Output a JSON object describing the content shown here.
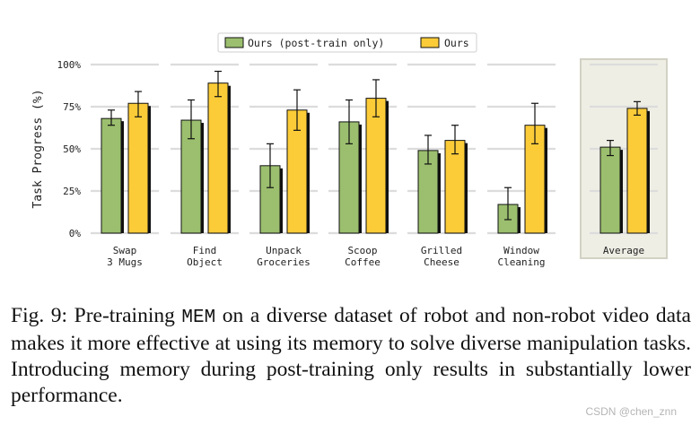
{
  "chart_data": {
    "type": "bar",
    "ylabel": "Task Progress (%)",
    "ylim": [
      0,
      100
    ],
    "yticks": [
      0,
      25,
      50,
      75,
      100
    ],
    "ytick_labels": [
      "0%",
      "25%",
      "50%",
      "75%",
      "100%"
    ],
    "legend_position": "top-center",
    "categories": [
      [
        "Swap",
        "3 Mugs"
      ],
      [
        "Find",
        "Object"
      ],
      [
        "Unpack",
        "Groceries"
      ],
      [
        "Scoop",
        "Coffee"
      ],
      [
        "Grilled",
        "Cheese"
      ],
      [
        "Window",
        "Cleaning"
      ],
      [
        "Average"
      ]
    ],
    "series": [
      {
        "name": "Ours (post-train only)",
        "color": "#9bbf6e",
        "values": [
          68,
          67,
          40,
          66,
          49,
          17,
          51
        ],
        "err_low": [
          64,
          56,
          27,
          53,
          41,
          8,
          46
        ],
        "err_high": [
          73,
          79,
          53,
          79,
          58,
          27,
          55
        ]
      },
      {
        "name": "Ours",
        "color": "#fccc38",
        "values": [
          77,
          89,
          73,
          80,
          55,
          64,
          74
        ],
        "err_low": [
          69,
          81,
          61,
          69,
          47,
          53,
          70
        ],
        "err_high": [
          84,
          96,
          85,
          91,
          64,
          77,
          78
        ]
      }
    ],
    "highlight_category": "Average",
    "highlight_color": "#efeee5",
    "grid_color": "#dcdcdc"
  },
  "caption": {
    "prefix": "Fig. 9: Pre-training ",
    "code": "MEM",
    "rest": " on a diverse dataset of robot and non-robot video data makes it more effective at using its memory to solve diverse manipulation tasks. Introducing memory during post-training only results in substantially lower performance."
  },
  "watermark": "CSDN @chen_znn"
}
